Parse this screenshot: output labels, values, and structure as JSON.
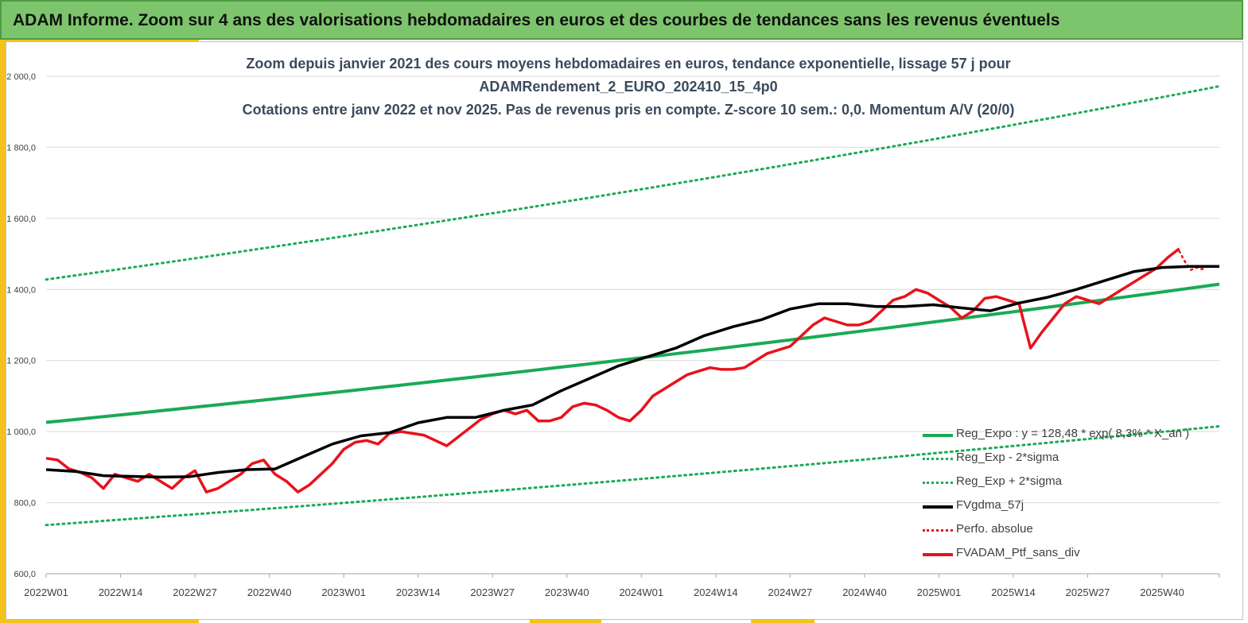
{
  "banner": {
    "title": "ADAM Informe. Zoom sur 4 ans des valorisations hebdomadaires en euros et des courbes de tendances sans les revenus éventuels"
  },
  "chart_data": {
    "type": "line",
    "title_lines": [
      "Zoom depuis janvier 2021 des cours moyens hebdomadaires  en euros, tendance exponentielle, lissage 57 j pour",
      "ADAMRendement_2_EURO_202410_15_4p0",
      "Cotations  entre janv 2022 et nov 2025. Pas de revenus pris en compte. Z-score 10 sem.: 0,0. Momentum A/V (20/0)"
    ],
    "xlabel": "",
    "ylabel": "",
    "ylim": [
      600,
      2000
    ],
    "y_ticks": [
      "600,0",
      "800,0",
      "1 000,0",
      "1 200,0",
      "1 400,0",
      "1 600,0",
      "1 800,0",
      "2 000,0"
    ],
    "x_ticks": [
      "2022W01",
      "2022W14",
      "2022W27",
      "2022W40",
      "2023W01",
      "2023W14",
      "2023W27",
      "2023W40",
      "2024W01",
      "2024W14",
      "2024W27",
      "2024W40",
      "2025W01",
      "2025W14",
      "2025W27",
      "2025W40"
    ],
    "x_range_weeks": [
      0,
      205
    ],
    "grid": "horizontal",
    "legend_position": "bottom-right",
    "series": [
      {
        "name": "Reg_Expo : y = 128,48 * exp( 8,3% *   X_an )",
        "color": "#1aaa55",
        "style": "solid",
        "x": [
          0,
          205
        ],
        "values": [
          1026,
          1415
        ]
      },
      {
        "name": "Reg_Exp - 2*sigma",
        "color": "#1aaa55",
        "style": "dotted",
        "x": [
          0,
          205
        ],
        "values": [
          737,
          1015
        ]
      },
      {
        "name": "Reg_Exp + 2*sigma",
        "color": "#1aaa55",
        "style": "dotted",
        "x": [
          0,
          205
        ],
        "values": [
          1428,
          1972
        ]
      },
      {
        "name": "FVgdma_57j",
        "color": "#000000",
        "style": "solid",
        "x": [
          0,
          5,
          10,
          15,
          20,
          25,
          30,
          35,
          40,
          45,
          50,
          55,
          60,
          65,
          70,
          75,
          80,
          85,
          90,
          95,
          100,
          105,
          110,
          115,
          120,
          125,
          130,
          135,
          140,
          145,
          150,
          155,
          160,
          165,
          170,
          175,
          180,
          185,
          190,
          195,
          200,
          205
        ],
        "values": [
          893,
          888,
          876,
          874,
          872,
          873,
          885,
          893,
          895,
          930,
          965,
          988,
          997,
          1025,
          1040,
          1040,
          1060,
          1075,
          1115,
          1150,
          1185,
          1210,
          1235,
          1270,
          1295,
          1315,
          1345,
          1360,
          1360,
          1352,
          1352,
          1357,
          1348,
          1340,
          1362,
          1378,
          1400,
          1425,
          1450,
          1462,
          1465,
          1465
        ]
      },
      {
        "name": "Perfo. absolue",
        "color": "#e8121b",
        "style": "dotted",
        "x": [
          198,
          199,
          200,
          201,
          202,
          203
        ],
        "values": [
          1508,
          1478,
          1455,
          1462,
          1457,
          1466
        ]
      },
      {
        "name": "FVADAM_Ptf_sans_div",
        "color": "#e8121b",
        "style": "solid",
        "x": [
          0,
          2,
          4,
          6,
          8,
          10,
          12,
          14,
          16,
          18,
          20,
          22,
          24,
          26,
          28,
          30,
          32,
          34,
          36,
          38,
          40,
          42,
          44,
          46,
          48,
          50,
          52,
          54,
          56,
          58,
          60,
          62,
          64,
          66,
          68,
          70,
          72,
          74,
          76,
          78,
          80,
          82,
          84,
          86,
          88,
          90,
          92,
          94,
          96,
          98,
          100,
          102,
          104,
          106,
          108,
          110,
          112,
          114,
          116,
          118,
          120,
          122,
          124,
          126,
          128,
          130,
          132,
          134,
          136,
          138,
          140,
          142,
          144,
          146,
          148,
          150,
          152,
          154,
          156,
          158,
          160,
          162,
          164,
          166,
          168,
          170,
          172,
          174,
          176,
          178,
          180,
          182,
          184,
          186,
          188,
          190,
          192,
          194,
          196,
          198
        ],
        "values": [
          925,
          920,
          895,
          885,
          870,
          840,
          880,
          870,
          860,
          880,
          860,
          840,
          870,
          890,
          830,
          840,
          860,
          880,
          910,
          920,
          880,
          860,
          830,
          850,
          880,
          910,
          950,
          970,
          975,
          965,
          995,
          1000,
          995,
          990,
          975,
          960,
          985,
          1010,
          1035,
          1050,
          1060,
          1050,
          1060,
          1030,
          1030,
          1040,
          1070,
          1080,
          1075,
          1060,
          1040,
          1030,
          1060,
          1100,
          1120,
          1140,
          1160,
          1170,
          1180,
          1175,
          1175,
          1180,
          1200,
          1220,
          1230,
          1240,
          1270,
          1300,
          1320,
          1310,
          1300,
          1300,
          1310,
          1340,
          1370,
          1380,
          1400,
          1390,
          1370,
          1350,
          1320,
          1340,
          1375,
          1380,
          1370,
          1360,
          1235,
          1280,
          1320,
          1360,
          1380,
          1370,
          1360,
          1380,
          1400,
          1420,
          1440,
          1460,
          1490,
          1515
        ]
      }
    ]
  }
}
